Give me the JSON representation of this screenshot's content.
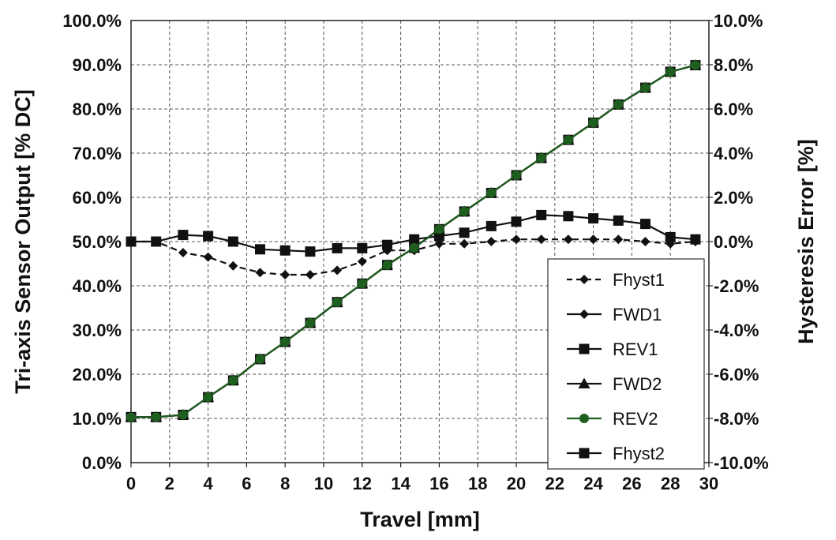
{
  "chart_data": {
    "type": "line",
    "xlabel": "Travel [mm]",
    "ylabel": "Tri-axis Sensor Output [% DC]",
    "y2label": "Hysteresis Error [%]",
    "xlim": [
      0,
      30
    ],
    "ylim": [
      0,
      100
    ],
    "y2lim": [
      -10,
      10
    ],
    "x_ticks": [
      "0",
      "2",
      "4",
      "6",
      "8",
      "10",
      "12",
      "14",
      "16",
      "18",
      "20",
      "22",
      "24",
      "26",
      "28",
      "30"
    ],
    "y_ticks": [
      "0.0%",
      "10.0%",
      "20.0%",
      "30.0%",
      "40.0%",
      "50.0%",
      "60.0%",
      "70.0%",
      "80.0%",
      "90.0%",
      "100.0%"
    ],
    "y2_ticks": [
      "-10.0%",
      "-8.0%",
      "-6.0%",
      "-4.0%",
      "-2.0%",
      "0.0%",
      "2.0%",
      "4.0%",
      "6.0%",
      "8.0%",
      "10.0%"
    ],
    "grid": true,
    "legend_position": "bottom-right",
    "series": [
      {
        "name": "Fhyst1",
        "axis": "y2",
        "marker": "diamond",
        "line": "dashed",
        "color": "#111111",
        "x": [
          0,
          1.3,
          2.7,
          4.0,
          5.3,
          6.7,
          8.0,
          9.3,
          10.7,
          12.0,
          13.3,
          14.7,
          16.0,
          17.3,
          18.7,
          20.0,
          21.3,
          22.7,
          24.0,
          25.3,
          26.7,
          28.0,
          29.3
        ],
        "y": [
          0.0,
          0.0,
          -0.5,
          -0.7,
          -1.1,
          -1.4,
          -1.5,
          -1.5,
          -1.3,
          -0.9,
          -0.4,
          -0.4,
          -0.1,
          -0.1,
          0.0,
          0.1,
          0.1,
          0.1,
          0.1,
          0.1,
          0.0,
          -0.1,
          0.0
        ]
      },
      {
        "name": "FWD1",
        "axis": "y1",
        "marker": "diamond",
        "line": "solid",
        "color": "#111111",
        "x": [
          0,
          1.3,
          2.7,
          4.0,
          5.3,
          6.7,
          8.0,
          9.3,
          10.7,
          12.0,
          13.3,
          14.7,
          16.0,
          17.3,
          18.7,
          20.0,
          21.3,
          22.7,
          24.0,
          25.3,
          26.7,
          28.0,
          29.3
        ],
        "y": [
          10.3,
          10.3,
          10.8,
          14.8,
          18.6,
          23.4,
          27.3,
          31.6,
          36.3,
          40.5,
          44.7,
          48.6,
          52.8,
          56.8,
          61.0,
          65.0,
          68.9,
          73.0,
          76.9,
          81.0,
          84.8,
          88.4,
          89.9
        ]
      },
      {
        "name": "REV1",
        "axis": "y1",
        "marker": "square",
        "line": "solid",
        "color": "#111111",
        "x": [
          0,
          1.3,
          2.7,
          4.0,
          5.3,
          6.7,
          8.0,
          9.3,
          10.7,
          12.0,
          13.3,
          14.7,
          16.0,
          17.3,
          18.7,
          20.0,
          21.3,
          22.7,
          24.0,
          25.3,
          26.7,
          28.0,
          29.3
        ],
        "y": [
          10.3,
          10.3,
          10.8,
          14.8,
          18.6,
          23.4,
          27.3,
          31.6,
          36.3,
          40.5,
          44.7,
          48.6,
          52.8,
          56.8,
          61.0,
          65.0,
          68.9,
          73.0,
          76.9,
          81.0,
          84.8,
          88.4,
          89.9
        ]
      },
      {
        "name": "FWD2",
        "axis": "y1",
        "marker": "triangle",
        "line": "solid",
        "color": "#111111",
        "x": [
          0,
          1.3,
          2.7,
          4.0,
          5.3,
          6.7,
          8.0,
          9.3,
          10.7,
          12.0,
          13.3,
          14.7,
          16.0,
          17.3,
          18.7,
          20.0,
          21.3,
          22.7,
          24.0,
          25.3,
          26.7,
          28.0,
          29.3
        ],
        "y": [
          10.3,
          10.3,
          10.8,
          14.8,
          18.6,
          23.4,
          27.3,
          31.6,
          36.3,
          40.5,
          44.7,
          48.6,
          52.8,
          56.8,
          61.0,
          65.0,
          68.9,
          73.0,
          76.9,
          81.0,
          84.8,
          88.4,
          89.9
        ]
      },
      {
        "name": "REV2",
        "axis": "y1",
        "marker": "circle",
        "line": "solid",
        "color": "#1e5e1e",
        "x": [
          0,
          1.3,
          2.7,
          4.0,
          5.3,
          6.7,
          8.0,
          9.3,
          10.7,
          12.0,
          13.3,
          14.7,
          16.0,
          17.3,
          18.7,
          20.0,
          21.3,
          22.7,
          24.0,
          25.3,
          26.7,
          28.0,
          29.3
        ],
        "y": [
          10.3,
          10.3,
          10.8,
          14.8,
          18.6,
          23.4,
          27.3,
          31.6,
          36.3,
          40.5,
          44.7,
          48.6,
          52.8,
          56.8,
          61.0,
          65.0,
          68.9,
          73.0,
          76.9,
          81.0,
          84.8,
          88.4,
          89.9
        ]
      },
      {
        "name": "Fhyst2",
        "axis": "y2",
        "marker": "square",
        "line": "solid",
        "color": "#111111",
        "x": [
          0,
          1.3,
          2.7,
          4.0,
          5.3,
          6.7,
          8.0,
          9.3,
          10.7,
          12.0,
          13.3,
          14.7,
          16.0,
          17.3,
          18.7,
          20.0,
          21.3,
          22.7,
          24.0,
          25.3,
          26.7,
          28.0,
          29.3
        ],
        "y": [
          0.0,
          0.0,
          0.3,
          0.25,
          0.0,
          -0.35,
          -0.4,
          -0.45,
          -0.3,
          -0.3,
          -0.15,
          0.1,
          0.25,
          0.4,
          0.7,
          0.9,
          1.2,
          1.15,
          1.05,
          0.95,
          0.8,
          0.2,
          0.1
        ]
      }
    ]
  }
}
